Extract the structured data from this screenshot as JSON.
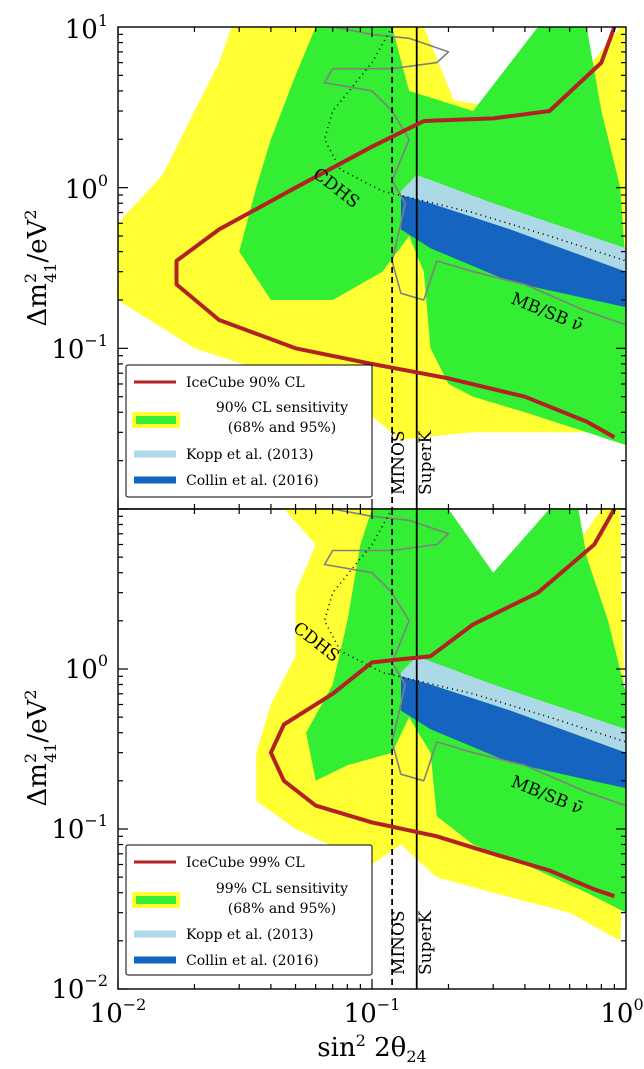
{
  "chart_data": [
    {
      "type": "line",
      "panel": "top",
      "xscale": "log",
      "yscale": "log",
      "xlim": [
        0.01,
        1.0
      ],
      "ylim": [
        0.01,
        10
      ],
      "y_ticks": [
        {
          "value": 10,
          "base": "10",
          "exp": "1"
        },
        {
          "value": 1,
          "base": "10",
          "exp": "0"
        },
        {
          "value": 0.1,
          "base": "10",
          "exp": "−1"
        }
      ],
      "ylabel_main": "Δm",
      "ylabel_sub": "41",
      "ylabel_sup": "2",
      "ylabel_unit": "/eV",
      "ylabel_unit_sup": "2",
      "regions": {
        "sens95": [
          [
            0.028,
            10
          ],
          [
            0.16,
            10
          ],
          [
            0.21,
            3.5
          ],
          [
            0.5,
            2.8
          ],
          [
            0.95,
            10
          ],
          [
            0.99,
            10
          ],
          [
            1.0,
            0.1
          ],
          [
            0.93,
            0.03
          ],
          [
            0.6,
            0.03
          ],
          [
            0.25,
            0.03
          ],
          [
            0.16,
            0.028
          ],
          [
            0.13,
            0.027
          ],
          [
            0.08,
            0.05
          ],
          [
            0.04,
            0.07
          ],
          [
            0.02,
            0.1
          ],
          [
            0.01,
            0.2
          ],
          [
            0.01,
            0.6
          ],
          [
            0.015,
            1.2
          ],
          [
            0.02,
            3
          ],
          [
            0.025,
            6
          ]
        ],
        "sens68": [
          [
            0.06,
            10
          ],
          [
            0.12,
            10
          ],
          [
            0.14,
            4
          ],
          [
            0.25,
            3
          ],
          [
            0.45,
            10
          ],
          [
            0.7,
            10
          ],
          [
            0.8,
            3
          ],
          [
            0.95,
            1
          ],
          [
            1.0,
            0.3
          ],
          [
            1.0,
            0.025
          ],
          [
            0.7,
            0.03
          ],
          [
            0.4,
            0.04
          ],
          [
            0.25,
            0.05
          ],
          [
            0.2,
            0.06
          ],
          [
            0.17,
            0.1
          ],
          [
            0.16,
            0.3
          ],
          [
            0.14,
            0.5
          ],
          [
            0.11,
            0.3
          ],
          [
            0.07,
            0.2
          ],
          [
            0.04,
            0.2
          ],
          [
            0.03,
            0.4
          ],
          [
            0.035,
            1
          ],
          [
            0.04,
            2
          ],
          [
            0.05,
            5
          ]
        ],
        "kopp": [
          [
            0.13,
            0.95
          ],
          [
            0.15,
            1.2
          ],
          [
            0.3,
            0.8
          ],
          [
            1.0,
            0.42
          ],
          [
            1.0,
            0.25
          ],
          [
            0.3,
            0.4
          ],
          [
            0.15,
            0.55
          ],
          [
            0.13,
            0.7
          ]
        ],
        "collin": [
          [
            0.13,
            0.9
          ],
          [
            0.17,
            0.8
          ],
          [
            0.35,
            0.55
          ],
          [
            1.0,
            0.3
          ],
          [
            1.0,
            0.18
          ],
          [
            0.35,
            0.26
          ],
          [
            0.17,
            0.42
          ],
          [
            0.13,
            0.55
          ]
        ]
      },
      "series": [
        {
          "name": "IceCube 90% CL",
          "color": "#b22222",
          "width": 4,
          "points": [
            [
              0.9,
              10
            ],
            [
              0.8,
              6
            ],
            [
              0.5,
              3
            ],
            [
              0.3,
              2.7
            ],
            [
              0.16,
              2.6
            ],
            [
              0.1,
              1.8
            ],
            [
              0.05,
              1
            ],
            [
              0.025,
              0.55
            ],
            [
              0.017,
              0.35
            ],
            [
              0.017,
              0.25
            ],
            [
              0.025,
              0.15
            ],
            [
              0.05,
              0.1
            ],
            [
              0.1,
              0.08
            ],
            [
              0.2,
              0.065
            ],
            [
              0.4,
              0.05
            ],
            [
              0.7,
              0.035
            ],
            [
              0.9,
              0.028
            ]
          ]
        },
        {
          "name": "CDHS",
          "color": "#000000",
          "width": 1.6,
          "dash": "1,4",
          "points": [
            [
              0.12,
              10
            ],
            [
              0.1,
              6
            ],
            [
              0.07,
              3
            ],
            [
              0.065,
              2
            ],
            [
              0.075,
              1.3
            ],
            [
              0.11,
              0.95
            ],
            [
              0.25,
              0.7
            ],
            [
              0.5,
              0.5
            ],
            [
              1.0,
              0.35
            ]
          ]
        },
        {
          "name": "MB/SB",
          "color": "#808080",
          "width": 1.6,
          "points": [
            [
              0.07,
              10
            ],
            [
              0.1,
              9
            ],
            [
              0.14,
              8.5
            ],
            [
              0.2,
              7
            ],
            [
              0.18,
              6
            ],
            [
              0.12,
              5.5
            ],
            [
              0.07,
              5.5
            ],
            [
              0.065,
              4.5
            ],
            [
              0.1,
              4
            ],
            [
              0.12,
              3
            ],
            [
              0.14,
              2
            ],
            [
              0.13,
              1.5
            ],
            [
              0.12,
              1.1
            ],
            [
              0.135,
              0.8
            ],
            [
              0.13,
              0.6
            ],
            [
              0.12,
              0.35
            ],
            [
              0.13,
              0.22
            ],
            [
              0.16,
              0.2
            ],
            [
              0.18,
              0.35
            ],
            [
              0.25,
              0.3
            ],
            [
              0.4,
              0.25
            ],
            [
              0.7,
              0.17
            ],
            [
              1.0,
              0.14
            ]
          ]
        }
      ],
      "vlines": [
        {
          "name": "MINOS",
          "x": 0.12,
          "dash": "6,4"
        },
        {
          "name": "SuperK",
          "x": 0.15,
          "dash": ""
        }
      ],
      "annotations": {
        "cdhs": "CDHS",
        "mbsb": "MB/SB ν̄"
      },
      "legend": {
        "placement": "lower-left",
        "entries": [
          "IceCube 90% CL",
          "90% CL sensitivity",
          "(68% and 95%)",
          "Kopp et al. (2013)",
          "Collin et al. (2016)"
        ]
      }
    },
    {
      "type": "line",
      "panel": "bottom",
      "xscale": "log",
      "yscale": "log",
      "xlim": [
        0.01,
        1.0
      ],
      "ylim": [
        0.01,
        10
      ],
      "x_ticks": [
        {
          "value": 0.01,
          "base": "10",
          "exp": "−2"
        },
        {
          "value": 0.1,
          "base": "10",
          "exp": "−1"
        },
        {
          "value": 1,
          "base": "10",
          "exp": "0"
        }
      ],
      "y_ticks": [
        {
          "value": 1,
          "base": "10",
          "exp": "0"
        },
        {
          "value": 0.1,
          "base": "10",
          "exp": "−1"
        },
        {
          "value": 0.01,
          "base": "10",
          "exp": "−2"
        }
      ],
      "xlabel_main": "sin",
      "xlabel_sup": "2",
      "xlabel_arg": " 2θ",
      "xlabel_sub": "24",
      "ylabel_main": "Δm",
      "ylabel_sub": "41",
      "ylabel_sup": "2",
      "ylabel_unit": "/eV",
      "ylabel_unit_sup": "2",
      "regions": {
        "sens95": [
          [
            0.045,
            10
          ],
          [
            0.2,
            10
          ],
          [
            0.25,
            3
          ],
          [
            0.4,
            2
          ],
          [
            0.8,
            10
          ],
          [
            0.95,
            10
          ],
          [
            1.0,
            0.2
          ],
          [
            0.95,
            0.02
          ],
          [
            0.6,
            0.03
          ],
          [
            0.3,
            0.04
          ],
          [
            0.18,
            0.05
          ],
          [
            0.13,
            0.08
          ],
          [
            0.1,
            0.06
          ],
          [
            0.05,
            0.1
          ],
          [
            0.035,
            0.15
          ],
          [
            0.035,
            0.3
          ],
          [
            0.04,
            0.6
          ],
          [
            0.05,
            1.2
          ],
          [
            0.05,
            3
          ],
          [
            0.06,
            6
          ]
        ],
        "sens68": [
          [
            0.1,
            10
          ],
          [
            0.2,
            10
          ],
          [
            0.3,
            4
          ],
          [
            0.5,
            10
          ],
          [
            0.65,
            10
          ],
          [
            0.7,
            5
          ],
          [
            0.85,
            2
          ],
          [
            1.0,
            0.7
          ],
          [
            1.0,
            0.03
          ],
          [
            0.7,
            0.04
          ],
          [
            0.4,
            0.06
          ],
          [
            0.25,
            0.08
          ],
          [
            0.18,
            0.12
          ],
          [
            0.17,
            0.3
          ],
          [
            0.14,
            0.5
          ],
          [
            0.12,
            0.3
          ],
          [
            0.08,
            0.25
          ],
          [
            0.06,
            0.2
          ],
          [
            0.055,
            0.4
          ],
          [
            0.07,
            0.8
          ],
          [
            0.08,
            2
          ],
          [
            0.09,
            6
          ]
        ],
        "kopp": [
          [
            0.13,
            0.95
          ],
          [
            0.15,
            1.2
          ],
          [
            0.3,
            0.8
          ],
          [
            1.0,
            0.42
          ],
          [
            1.0,
            0.25
          ],
          [
            0.3,
            0.4
          ],
          [
            0.15,
            0.55
          ],
          [
            0.13,
            0.7
          ]
        ],
        "collin": [
          [
            0.13,
            0.9
          ],
          [
            0.17,
            0.8
          ],
          [
            0.35,
            0.55
          ],
          [
            1.0,
            0.3
          ],
          [
            1.0,
            0.18
          ],
          [
            0.35,
            0.26
          ],
          [
            0.17,
            0.42
          ],
          [
            0.13,
            0.55
          ]
        ]
      },
      "series": [
        {
          "name": "IceCube 99% CL",
          "color": "#b22222",
          "width": 4,
          "points": [
            [
              0.9,
              10
            ],
            [
              0.75,
              6
            ],
            [
              0.45,
              3
            ],
            [
              0.25,
              1.9
            ],
            [
              0.17,
              1.2
            ],
            [
              0.13,
              1.15
            ],
            [
              0.1,
              1.1
            ],
            [
              0.07,
              0.7
            ],
            [
              0.045,
              0.45
            ],
            [
              0.04,
              0.3
            ],
            [
              0.045,
              0.2
            ],
            [
              0.06,
              0.14
            ],
            [
              0.1,
              0.11
            ],
            [
              0.18,
              0.09
            ],
            [
              0.3,
              0.07
            ],
            [
              0.5,
              0.055
            ],
            [
              0.75,
              0.042
            ],
            [
              0.9,
              0.038
            ]
          ]
        },
        {
          "name": "CDHS",
          "color": "#000000",
          "width": 1.6,
          "dash": "1,4",
          "points": [
            [
              0.12,
              10
            ],
            [
              0.1,
              6
            ],
            [
              0.07,
              3
            ],
            [
              0.065,
              2
            ],
            [
              0.075,
              1.3
            ],
            [
              0.11,
              0.95
            ],
            [
              0.25,
              0.7
            ],
            [
              0.5,
              0.5
            ],
            [
              1.0,
              0.35
            ]
          ]
        },
        {
          "name": "MB/SB",
          "color": "#808080",
          "width": 1.6,
          "points": [
            [
              0.07,
              10
            ],
            [
              0.1,
              9
            ],
            [
              0.14,
              8.5
            ],
            [
              0.2,
              7
            ],
            [
              0.18,
              6
            ],
            [
              0.12,
              5.5
            ],
            [
              0.07,
              5.5
            ],
            [
              0.065,
              4.5
            ],
            [
              0.1,
              4
            ],
            [
              0.12,
              3
            ],
            [
              0.14,
              2
            ],
            [
              0.13,
              1.5
            ],
            [
              0.12,
              1.1
            ],
            [
              0.135,
              0.8
            ],
            [
              0.13,
              0.6
            ],
            [
              0.12,
              0.35
            ],
            [
              0.13,
              0.22
            ],
            [
              0.16,
              0.2
            ],
            [
              0.18,
              0.35
            ],
            [
              0.25,
              0.3
            ],
            [
              0.4,
              0.25
            ],
            [
              0.7,
              0.17
            ],
            [
              1.0,
              0.14
            ]
          ]
        }
      ],
      "vlines": [
        {
          "name": "MINOS",
          "x": 0.12,
          "dash": "6,4"
        },
        {
          "name": "SuperK",
          "x": 0.15,
          "dash": ""
        }
      ],
      "annotations": {
        "cdhs": "CDHS",
        "mbsb": "MB/SB ν̄"
      },
      "legend": {
        "placement": "lower-left",
        "entries": [
          "IceCube 99% CL",
          "99% CL sensitivity",
          "(68% and 95%)",
          "Kopp et al. (2013)",
          "Collin et al. (2016)"
        ]
      }
    }
  ],
  "colors": {
    "sens95": "#ffff33",
    "sens68": "#33ee33",
    "kopp": "#add8e6",
    "collin": "#1565c0",
    "icecube": "#b22222"
  }
}
